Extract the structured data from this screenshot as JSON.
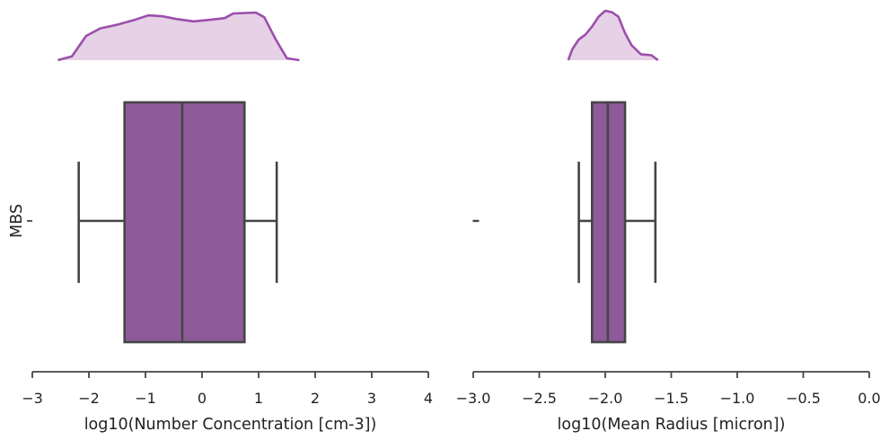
{
  "chart_data": [
    {
      "type": "box",
      "category": "MBS",
      "ylabel": "MBS",
      "xlabel": "log10(Number Concentration [cm-3])",
      "xlim": [
        -3,
        4
      ],
      "xticks": [
        -3,
        -2,
        -1,
        0,
        1,
        2,
        3,
        4
      ],
      "xtick_labels": [
        "−3",
        "−2",
        "−1",
        "0",
        "1",
        "2",
        "3",
        "4"
      ],
      "box": {
        "whisker_low": -2.18,
        "q1": -1.37,
        "median": -0.35,
        "q3": 0.75,
        "whisker_high": 1.32
      },
      "outliers": [],
      "density": [
        [
          -2.55,
          0.0
        ],
        [
          -2.3,
          0.08
        ],
        [
          -2.05,
          0.52
        ],
        [
          -1.8,
          0.68
        ],
        [
          -1.5,
          0.76
        ],
        [
          -1.2,
          0.86
        ],
        [
          -0.95,
          0.96
        ],
        [
          -0.7,
          0.94
        ],
        [
          -0.45,
          0.88
        ],
        [
          -0.15,
          0.83
        ],
        [
          0.1,
          0.86
        ],
        [
          0.4,
          0.9
        ],
        [
          0.55,
          1.0
        ],
        [
          0.95,
          1.02
        ],
        [
          1.1,
          0.92
        ],
        [
          1.3,
          0.45
        ],
        [
          1.5,
          0.04
        ],
        [
          1.72,
          0.0
        ]
      ]
    },
    {
      "type": "box",
      "category": "MBS",
      "ylabel": "",
      "xlabel": "log10(Mean Radius [micron])",
      "xlim": [
        -3.0,
        0.0
      ],
      "xticks": [
        -3.0,
        -2.5,
        -2.0,
        -1.5,
        -1.0,
        -0.5,
        0.0
      ],
      "xtick_labels": [
        "−3.0",
        "−2.5",
        "−2.0",
        "−1.5",
        "−1.0",
        "−0.5",
        "0.0"
      ],
      "box": {
        "whisker_low": -2.2,
        "q1": -2.1,
        "median": -1.98,
        "q3": -1.85,
        "whisker_high": -1.62
      },
      "outliers": [
        -2.98
      ],
      "density": [
        [
          -2.28,
          0.0
        ],
        [
          -2.25,
          0.22
        ],
        [
          -2.2,
          0.42
        ],
        [
          -2.15,
          0.52
        ],
        [
          -2.1,
          0.68
        ],
        [
          -2.05,
          0.88
        ],
        [
          -2.0,
          1.0
        ],
        [
          -1.95,
          0.97
        ],
        [
          -1.9,
          0.88
        ],
        [
          -1.85,
          0.55
        ],
        [
          -1.8,
          0.3
        ],
        [
          -1.73,
          0.12
        ],
        [
          -1.65,
          0.1
        ],
        [
          -1.6,
          0.0
        ]
      ]
    }
  ],
  "colors": {
    "box_fill": "#8e5a9a",
    "line": "#454545",
    "kde_line": "#9b4fab",
    "kde_fill": "#e6d1e7"
  }
}
